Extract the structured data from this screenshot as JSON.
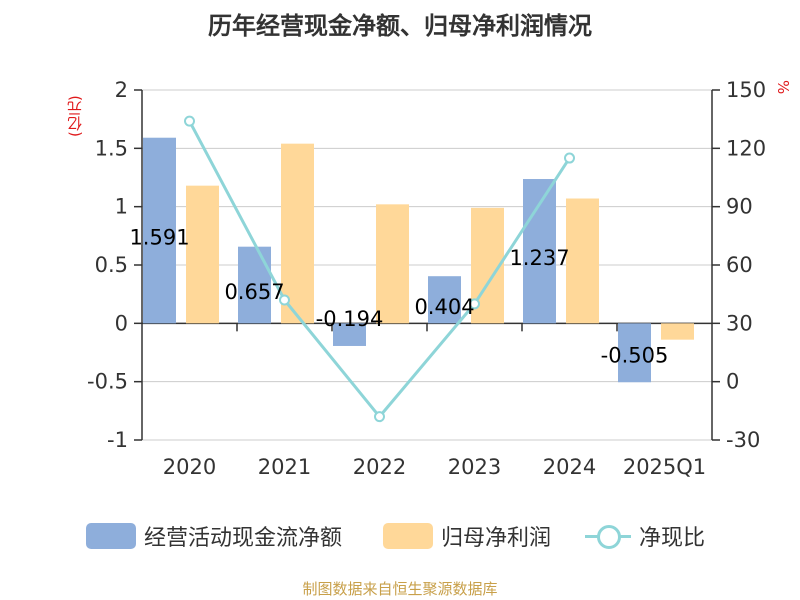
{
  "title": "历年经营现金净额、归母净利润情况",
  "unit_left": "(亿元)",
  "unit_right": "%",
  "source": "制图数据来自恒生聚源数据库",
  "colors": {
    "cash_flow": "#8eaedb",
    "net_profit": "#ffd899",
    "ratio": "#8ed5d8",
    "axis": "#333333",
    "grid": "#cccccc"
  },
  "chart_data": {
    "type": "bar",
    "categories": [
      "2020",
      "2021",
      "2022",
      "2023",
      "2024",
      "2025Q1"
    ],
    "series": [
      {
        "name": "经营活动现金流净额",
        "type": "bar",
        "axis": "left",
        "values": [
          1.591,
          0.657,
          -0.194,
          0.404,
          1.237,
          -0.505
        ],
        "labels": [
          "1.591",
          "0.657",
          "-0.194",
          "0.404",
          "1.237",
          "-0.505"
        ]
      },
      {
        "name": "归母净利润",
        "type": "bar",
        "axis": "left",
        "values": [
          1.18,
          1.54,
          1.02,
          0.99,
          1.07,
          -0.14
        ]
      },
      {
        "name": "净现比",
        "type": "line",
        "axis": "right",
        "values": [
          134,
          42,
          -18,
          40,
          115,
          null
        ]
      }
    ],
    "left_axis": {
      "ticks": [
        "2",
        "1.5",
        "1",
        "0.5",
        "0",
        "-0.5",
        "-1"
      ],
      "ylim": [
        -1,
        2
      ]
    },
    "right_axis": {
      "ticks": [
        "150",
        "120",
        "90",
        "60",
        "30",
        "0",
        "-30"
      ],
      "ylim": [
        -30,
        150
      ]
    },
    "grid": true,
    "legend": "bottom"
  }
}
